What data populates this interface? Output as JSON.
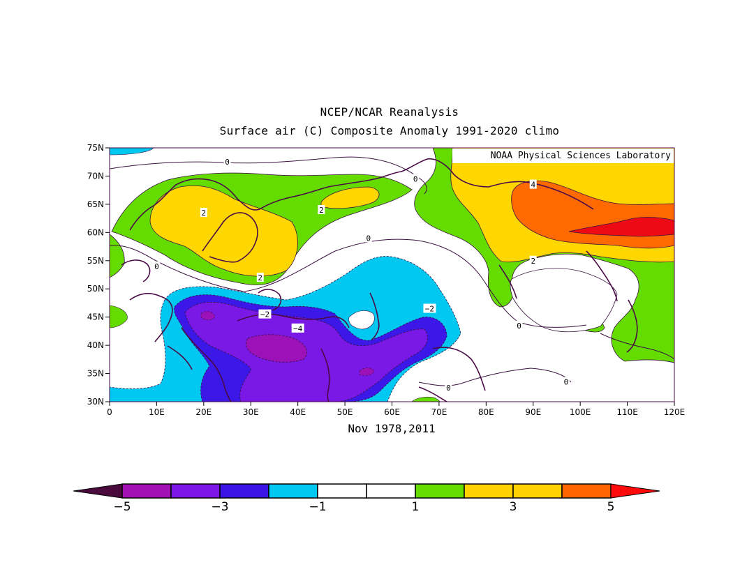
{
  "title": "NCEP/NCAR Reanalysis",
  "subtitle": "Surface air (C) Composite Anomaly 1991-2020 climo",
  "xlabel": "Nov 1978,2011",
  "credit": "NOAA Physical Sciences Laboratory",
  "map": {
    "lon_range": [
      0,
      120
    ],
    "lat_range": [
      30,
      75
    ],
    "lat_ticks": [
      "75N",
      "70N",
      "65N",
      "60N",
      "55N",
      "50N",
      "45N",
      "40N",
      "35N",
      "30N"
    ],
    "lon_ticks": [
      "0",
      "10E",
      "20E",
      "30E",
      "40E",
      "50E",
      "60E",
      "70E",
      "80E",
      "90E",
      "100E",
      "110E",
      "120E"
    ],
    "contour_labels": [
      {
        "text": "0",
        "lon": 25,
        "lat": 72.5
      },
      {
        "text": "0",
        "lon": 65,
        "lat": 69.5
      },
      {
        "text": "0",
        "lon": 55,
        "lat": 59
      },
      {
        "text": "0",
        "lon": 10,
        "lat": 54
      },
      {
        "text": "0",
        "lon": 87,
        "lat": 43.5
      },
      {
        "text": "0",
        "lon": 72,
        "lat": 32.5
      },
      {
        "text": "0",
        "lon": 97,
        "lat": 33.5
      },
      {
        "text": "2",
        "lon": 20,
        "lat": 63.5
      },
      {
        "text": "2",
        "lon": 45,
        "lat": 64
      },
      {
        "text": "2",
        "lon": 32,
        "lat": 52
      },
      {
        "text": "2",
        "lon": 90,
        "lat": 55
      },
      {
        "text": "4",
        "lon": 90,
        "lat": 68.5
      },
      {
        "text": "-2",
        "lon": 33,
        "lat": 45.5
      },
      {
        "text": "-2",
        "lon": 68,
        "lat": 46.5
      },
      {
        "text": "-4",
        "lon": 40,
        "lat": 43
      }
    ]
  },
  "colorbar": {
    "labels": [
      "-5",
      "-3",
      "-1",
      "1",
      "3",
      "5"
    ],
    "bins": [
      {
        "color": "#4b0a3c"
      },
      {
        "color": "#a012b4"
      },
      {
        "color": "#7d16e6"
      },
      {
        "color": "#3c14e6"
      },
      {
        "color": "#00c8f0"
      },
      {
        "color": "#ffffff"
      },
      {
        "color": "#ffffff"
      },
      {
        "color": "#64dc00"
      },
      {
        "color": "#ffd200"
      },
      {
        "color": "#ffd200"
      },
      {
        "color": "#ff6400"
      },
      {
        "color": "#ff0a0a"
      }
    ]
  },
  "colors": {
    "neg5": "#9c12b8",
    "neg4": "#7a18e6",
    "neg3": "#3b18e8",
    "neg1": "#00c8f0",
    "pos1": "#64dc00",
    "pos2": "#ffd700",
    "pos4": "#ff6a00",
    "pos5": "#ee0a14",
    "coast": "#4a0a46"
  }
}
